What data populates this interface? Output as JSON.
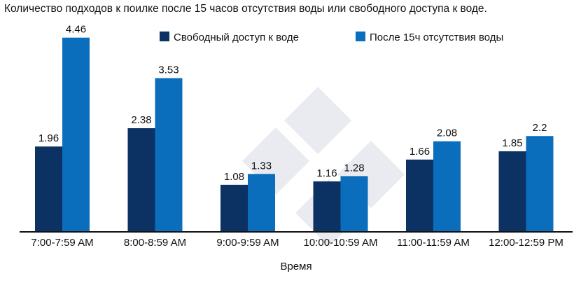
{
  "chart_data": {
    "type": "bar",
    "title": "Количество подходов к поилке после 15 часов отсутствия воды или свободного доступа к воде.",
    "xlabel": "Время",
    "ylabel": "",
    "categories": [
      "7:00-7:59 AM",
      "8:00-8:59 AM",
      "9:00-9:59 AM",
      "10:00-10:59 AM",
      "11:00-11:59 AM",
      "12:00-12:59 PM"
    ],
    "series": [
      {
        "name": "Свободный доступ к воде",
        "color": "#0b3263",
        "values": [
          1.96,
          2.38,
          1.08,
          1.16,
          1.66,
          1.85
        ],
        "labels": [
          "1.96",
          "2.38",
          "1.08",
          "1.16",
          "1.66",
          "1.85"
        ]
      },
      {
        "name": "После 15ч отсутствия воды",
        "color": "#0a6ebd",
        "values": [
          4.46,
          3.53,
          1.33,
          1.28,
          2.08,
          2.2
        ],
        "labels": [
          "4.46",
          "3.53",
          "1.33",
          "1.28",
          "2.08",
          "2.2"
        ]
      }
    ],
    "ylim": [
      0,
      4.6
    ],
    "grid": false,
    "legend_position": "top-right"
  }
}
